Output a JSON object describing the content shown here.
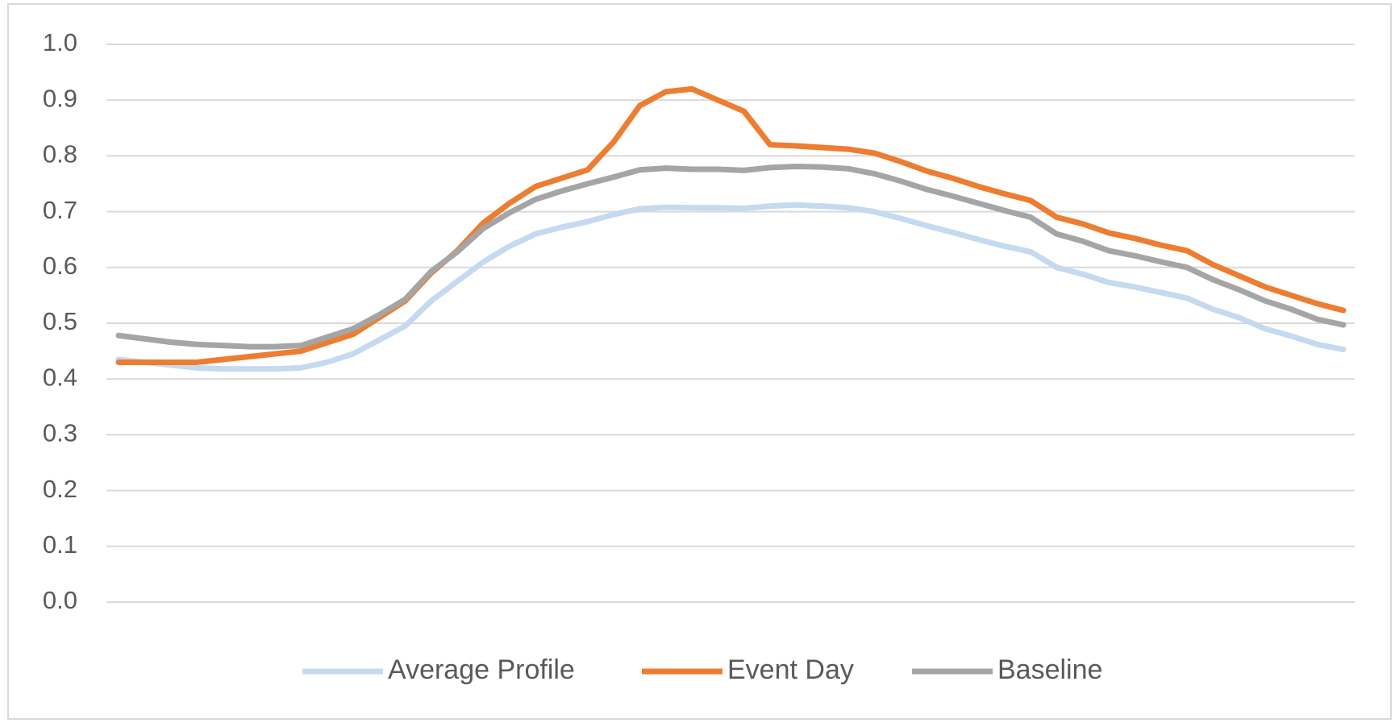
{
  "chart_data": {
    "type": "line",
    "categories": [
      null,
      null,
      null,
      null,
      null,
      null,
      null,
      null,
      null,
      null,
      null,
      null,
      null,
      null,
      null,
      null,
      null,
      null,
      null,
      null,
      null,
      null,
      null,
      null,
      null,
      null,
      null,
      null,
      null,
      null,
      null,
      null,
      null,
      null,
      null,
      null,
      null,
      null,
      null,
      null,
      null,
      null,
      null,
      null,
      null,
      null,
      null,
      null
    ],
    "series": [
      {
        "name": "Average Profile",
        "color": "#c5d9f1",
        "values": [
          0.435,
          0.43,
          0.425,
          0.42,
          0.418,
          0.418,
          0.418,
          0.42,
          0.43,
          0.445,
          0.47,
          0.495,
          0.54,
          0.575,
          0.61,
          0.638,
          0.66,
          0.672,
          0.682,
          0.695,
          0.705,
          0.708,
          0.707,
          0.707,
          0.706,
          0.71,
          0.712,
          0.71,
          0.707,
          0.7,
          0.688,
          0.675,
          0.663,
          0.65,
          0.638,
          0.628,
          0.6,
          0.588,
          0.573,
          0.565,
          0.555,
          0.545,
          0.525,
          0.51,
          0.49,
          0.477,
          0.462,
          0.453
        ]
      },
      {
        "name": "Event Day",
        "color": "#ed7d31",
        "values": [
          0.43,
          0.43,
          0.43,
          0.43,
          0.435,
          0.44,
          0.445,
          0.45,
          0.465,
          0.48,
          0.51,
          0.54,
          0.59,
          0.63,
          0.68,
          0.715,
          0.745,
          0.76,
          0.775,
          0.825,
          0.89,
          0.915,
          0.92,
          0.9,
          0.88,
          0.82,
          0.818,
          0.815,
          0.812,
          0.805,
          0.79,
          0.773,
          0.76,
          0.745,
          0.732,
          0.72,
          0.69,
          0.678,
          0.662,
          0.652,
          0.64,
          0.63,
          0.605,
          0.585,
          0.565,
          0.55,
          0.535,
          0.523
        ]
      },
      {
        "name": "Baseline",
        "color": "#a5a5a5",
        "values": [
          0.478,
          0.472,
          0.466,
          0.462,
          0.46,
          0.458,
          0.458,
          0.46,
          0.475,
          0.49,
          0.515,
          0.543,
          0.593,
          0.628,
          0.67,
          0.698,
          0.722,
          0.737,
          0.75,
          0.762,
          0.775,
          0.778,
          0.776,
          0.776,
          0.774,
          0.779,
          0.781,
          0.78,
          0.777,
          0.768,
          0.755,
          0.74,
          0.728,
          0.715,
          0.702,
          0.69,
          0.66,
          0.647,
          0.63,
          0.621,
          0.61,
          0.6,
          0.578,
          0.56,
          0.54,
          0.525,
          0.507,
          0.497
        ]
      }
    ],
    "ylim": [
      0,
      1
    ],
    "yticks": [
      {
        "value": 0,
        "label": "0.0"
      },
      0.1,
      0.2,
      0.3,
      0.4,
      0.5,
      0.6,
      0.7,
      0.8,
      0.9,
      {
        "value": 1,
        "label": "1.0"
      }
    ],
    "grid": true,
    "legend": "bottom"
  }
}
